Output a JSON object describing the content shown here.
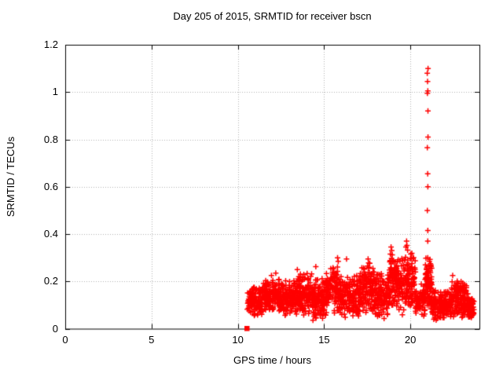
{
  "chart_data": {
    "type": "scatter",
    "title": "Day 205 of 2015, SRMTID for receiver bscn",
    "xlabel": "GPS time / hours",
    "ylabel": "SRMTID / TECUs",
    "xlim": [
      0,
      24
    ],
    "ylim": [
      0,
      1.2
    ],
    "xticks": [
      0,
      5,
      10,
      15,
      20
    ],
    "xtick_labels": [
      "0",
      "5",
      "10",
      "15",
      "20"
    ],
    "yticks": [
      0,
      0.2,
      0.4,
      0.6,
      0.8,
      1,
      1.2
    ],
    "ytick_labels": [
      "0",
      "0.2",
      "0.4",
      "0.6",
      "0.8",
      "1",
      "1.2"
    ],
    "grid": true,
    "legend": null,
    "marker": "plus-marker",
    "marker_size": 7,
    "marker_color": "#ff0000",
    "grid_color": "#b0b0b0",
    "axis_color": "#000000",
    "seed": 2015205,
    "zero_point": [
      10.52,
      0.0
    ],
    "spike": {
      "x": 21.0,
      "values": [
        1.1,
        1.08,
        1.045,
        1.005,
        0.995,
        0.92,
        0.81,
        0.765,
        0.655,
        0.6,
        0.5,
        0.415,
        0.37,
        0.3,
        0.235
      ]
    },
    "extra_points": [
      [
        15.78,
        0.3
      ],
      [
        15.82,
        0.285
      ],
      [
        16.3,
        0.295
      ],
      [
        17.55,
        0.295
      ],
      [
        17.58,
        0.278
      ],
      [
        18.88,
        0.345
      ],
      [
        18.92,
        0.33
      ],
      [
        18.95,
        0.312
      ],
      [
        19.74,
        0.345
      ],
      [
        19.78,
        0.37
      ],
      [
        19.8,
        0.352
      ],
      [
        19.84,
        0.332
      ],
      [
        20.02,
        0.315
      ],
      [
        20.06,
        0.298
      ],
      [
        20.9,
        0.298
      ],
      [
        21.1,
        0.285
      ],
      [
        14.52,
        0.262
      ],
      [
        13.45,
        0.25
      ],
      [
        12.2,
        0.235
      ],
      [
        22.45,
        0.225
      ],
      [
        11.95,
        0.225
      ]
    ],
    "band_segments": [
      {
        "x0": 10.55,
        "x1": 10.8,
        "n": 30,
        "ylo": 0.06,
        "yhi": 0.17
      },
      {
        "x0": 10.8,
        "x1": 11.4,
        "n": 95,
        "ylo": 0.05,
        "yhi": 0.19
      },
      {
        "x0": 11.4,
        "x1": 12.4,
        "n": 155,
        "ylo": 0.055,
        "yhi": 0.22
      },
      {
        "x0": 12.4,
        "x1": 13.4,
        "n": 155,
        "ylo": 0.05,
        "yhi": 0.21
      },
      {
        "x0": 13.4,
        "x1": 14.3,
        "n": 145,
        "ylo": 0.055,
        "yhi": 0.24
      },
      {
        "x0": 14.3,
        "x1": 15.1,
        "n": 135,
        "ylo": 0.03,
        "yhi": 0.22
      },
      {
        "x0": 15.1,
        "x1": 16.0,
        "n": 145,
        "ylo": 0.05,
        "yhi": 0.27
      },
      {
        "x0": 16.0,
        "x1": 17.1,
        "n": 165,
        "ylo": 0.04,
        "yhi": 0.24
      },
      {
        "x0": 17.1,
        "x1": 17.9,
        "n": 135,
        "ylo": 0.06,
        "yhi": 0.28
      },
      {
        "x0": 17.9,
        "x1": 18.8,
        "n": 145,
        "ylo": 0.04,
        "yhi": 0.25
      },
      {
        "x0": 18.8,
        "x1": 19.3,
        "n": 95,
        "ylo": 0.07,
        "yhi": 0.33
      },
      {
        "x0": 19.3,
        "x1": 20.3,
        "n": 155,
        "ylo": 0.05,
        "yhi": 0.33
      },
      {
        "x0": 20.3,
        "x1": 20.85,
        "n": 85,
        "ylo": 0.04,
        "yhi": 0.19
      },
      {
        "x0": 20.85,
        "x1": 21.25,
        "n": 95,
        "ylo": 0.07,
        "yhi": 0.3
      },
      {
        "x0": 21.25,
        "x1": 22.35,
        "n": 165,
        "ylo": 0.03,
        "yhi": 0.17
      },
      {
        "x0": 22.35,
        "x1": 23.35,
        "n": 170,
        "ylo": 0.04,
        "yhi": 0.21
      },
      {
        "x0": 23.35,
        "x1": 23.72,
        "n": 60,
        "ylo": 0.04,
        "yhi": 0.14
      }
    ]
  }
}
